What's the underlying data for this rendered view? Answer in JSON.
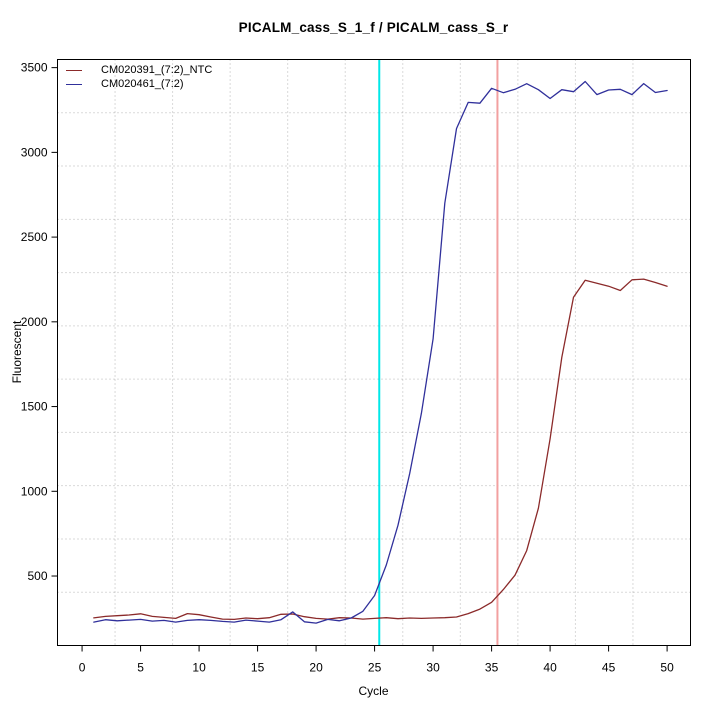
{
  "window": {
    "background": "#FFFFFF"
  },
  "chart_data": {
    "type": "line",
    "title": "PICALM_cass_S_1_f / PICALM_cass_S_r",
    "xlabel": "Cycle",
    "ylabel": "Fluorescent",
    "x": [
      1,
      2,
      3,
      4,
      5,
      6,
      7,
      8,
      9,
      10,
      11,
      12,
      13,
      14,
      15,
      16,
      17,
      18,
      19,
      20,
      21,
      22,
      23,
      24,
      25,
      26,
      27,
      28,
      29,
      30,
      31,
      32,
      33,
      34,
      35,
      36,
      37,
      38,
      39,
      40,
      41,
      42,
      43,
      44,
      45,
      46,
      47,
      48,
      49,
      50
    ],
    "series": [
      {
        "name": "CM020391_(7:2)_NTC",
        "color": "#8B2A2A",
        "values": [
          253,
          262,
          266,
          270,
          277,
          262,
          256,
          250,
          278,
          272,
          258,
          246,
          244,
          252,
          248,
          254,
          274,
          276,
          260,
          250,
          246,
          254,
          252,
          246,
          250,
          254,
          248,
          252,
          250,
          252,
          254,
          258,
          278,
          305,
          345,
          420,
          505,
          650,
          900,
          1310,
          1790,
          2145,
          2245,
          2228,
          2210,
          2185,
          2248,
          2252,
          2232,
          2210
        ]
      },
      {
        "name": "CM020461_(7:2)",
        "color": "#30309B",
        "values": [
          228,
          242,
          236,
          240,
          244,
          234,
          238,
          228,
          238,
          242,
          238,
          232,
          228,
          240,
          234,
          228,
          242,
          288,
          230,
          222,
          244,
          236,
          252,
          292,
          385,
          565,
          800,
          1105,
          1460,
          1900,
          2700,
          3140,
          3295,
          3290,
          3378,
          3352,
          3372,
          3405,
          3370,
          3318,
          3370,
          3358,
          3418,
          3341,
          3368,
          3372,
          3341,
          3406,
          3353,
          3365
        ]
      }
    ],
    "threshold_lines": [
      {
        "name": "ct-marker-CM020461",
        "x": 25.4,
        "color": "#00E8E8"
      },
      {
        "name": "ct-marker-CM020391",
        "x": 35.5,
        "color": "#F2A0A0"
      }
    ],
    "xticks": [
      0,
      5,
      10,
      15,
      20,
      25,
      30,
      35,
      40,
      45,
      50
    ],
    "yticks": [
      500,
      1000,
      1500,
      2000,
      2500,
      3000,
      3500
    ],
    "xlim": [
      -2.1,
      52.0
    ],
    "ylim": [
      90,
      3548
    ],
    "grid": {
      "style": "dotted",
      "divisions": 11,
      "color": "#B4B4B4"
    },
    "legend_position": "top-left",
    "axis_color": "#000000"
  }
}
